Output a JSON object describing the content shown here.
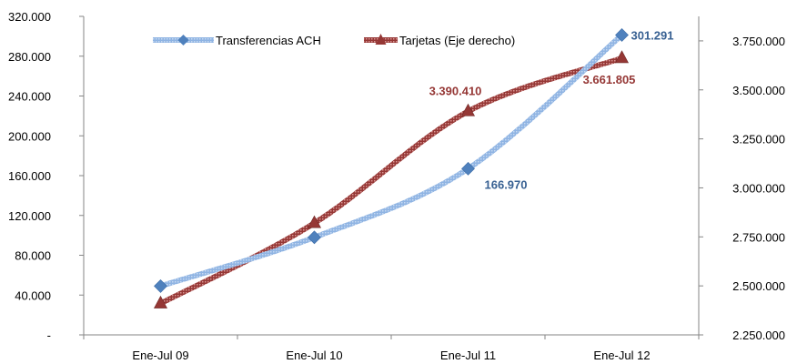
{
  "chart_data": {
    "type": "line",
    "categories": [
      "Ene-Jul 09",
      "Ene-Jul 10",
      "Ene-Jul 11",
      "Ene-Jul 12"
    ],
    "left_axis": {
      "ylim": [
        0,
        320000
      ],
      "ticks": [
        0,
        40000,
        80000,
        120000,
        160000,
        200000,
        240000,
        280000,
        320000
      ],
      "tick_labels": [
        "-",
        "40.000",
        "80.000",
        "120.000",
        "160.000",
        "200.000",
        "240.000",
        "280.000",
        "320.000"
      ]
    },
    "right_axis": {
      "ylim": [
        2250000,
        3875000
      ],
      "ticks": [
        2250000,
        2500000,
        2750000,
        3000000,
        3250000,
        3500000,
        3750000
      ],
      "tick_labels": [
        "2.250.000",
        "2.500.000",
        "2.750.000",
        "3.000.000",
        "3.250.000",
        "3.500.000",
        "3.750.000"
      ]
    },
    "series": [
      {
        "name": "Transferencias ACH",
        "axis": "left",
        "color": "#4f81bd",
        "marker": "diamond",
        "values": [
          49000,
          98000,
          166970,
          301291
        ],
        "data_labels": [
          "",
          "",
          "166.970",
          "301.291"
        ]
      },
      {
        "name": "Tarjetas (Eje derecho)",
        "axis": "right",
        "color": "#953735",
        "marker": "triangle",
        "values": [
          2410000,
          2820000,
          3390410,
          3661805
        ],
        "data_labels": [
          "",
          "",
          "3.390.410",
          "3.661.805"
        ]
      }
    ],
    "legend_position": "top",
    "grid": false
  }
}
